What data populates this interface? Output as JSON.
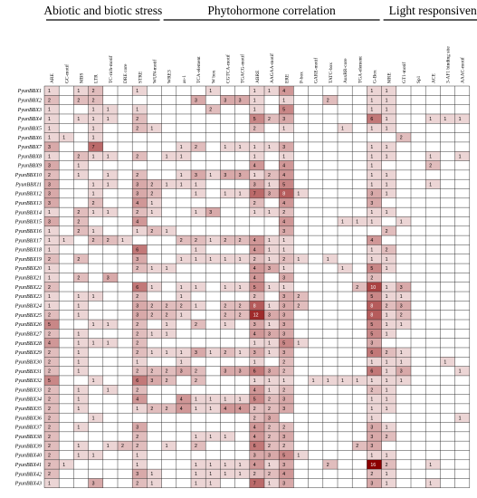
{
  "chart_data": {
    "type": "heatmap",
    "groups": [
      {
        "label": "Abiotic and biotic stress",
        "start": 0,
        "end": 7
      },
      {
        "label": "Phytohormone correlation",
        "start": 8,
        "end": 22
      },
      {
        "label": "Light responsiveness",
        "start": 23,
        "end": 30
      }
    ],
    "columns": [
      "ARE",
      "GC-motif",
      "MBS",
      "LTR",
      "TC-rich-motif",
      "DRE core",
      "STRE",
      "WUN-motif",
      "WRE3",
      "as-1",
      "TCA-element",
      "W box",
      "CGTCA-motif",
      "TGACG-motif",
      "ABRE",
      "AAGAA-motif",
      "ERE",
      "P-box",
      "GARE-motif",
      "TATC-box",
      "AuxRR-core",
      "TGA-element",
      "G-Box",
      "MRE",
      "GT1-motif",
      "Sp1",
      "ACE",
      "3-AF1 binding site",
      "AAAC-motif"
    ],
    "rows": [
      "PyunBBX1",
      "PyunBBX2",
      "PyunBBX3",
      "PyunBBX4",
      "PyunBBX5",
      "PyunBBX6",
      "PyunBBX7",
      "PyunBBX8",
      "PyunBBX9",
      "PyunBBX10",
      "PyunBBX11",
      "PyunBBX12",
      "PyunBBX13",
      "PyunBBX14",
      "PyunBBX15",
      "PyunBBX16",
      "PyunBBX17",
      "PyunBBX18",
      "PyunBBX19",
      "PyunBBX20",
      "PyunBBX21",
      "PyunBBX22",
      "PyunBBX23",
      "PyunBBX24",
      "PyunBBX25",
      "PyunBBX26",
      "PyunBBX27",
      "PyunBBX28",
      "PyunBBX29",
      "PyunBBX30",
      "PyunBBX31",
      "PyunBBX32",
      "PyunBBX33",
      "PyunBBX34",
      "PyunBBX35",
      "PyunBBX36",
      "PyunBBX37",
      "PyunBBX38",
      "PyunBBX39",
      "PyunBBX40",
      "PyunBBX41",
      "PyunBBX42",
      "PyunBBX43"
    ],
    "values": [
      [
        1,
        0,
        1,
        2,
        0,
        0,
        1,
        0,
        0,
        0,
        0,
        1,
        0,
        0,
        1,
        1,
        4,
        0,
        0,
        0,
        0,
        0,
        1,
        1,
        0,
        0,
        0,
        0,
        0
      ],
      [
        2,
        0,
        2,
        2,
        0,
        0,
        0,
        0,
        0,
        0,
        3,
        0,
        3,
        3,
        1,
        0,
        1,
        0,
        0,
        2,
        0,
        0,
        1,
        1,
        0,
        0,
        0,
        0,
        0
      ],
      [
        1,
        0,
        0,
        1,
        1,
        0,
        1,
        0,
        0,
        0,
        0,
        2,
        0,
        0,
        1,
        0,
        5,
        0,
        0,
        0,
        0,
        0,
        1,
        1,
        0,
        0,
        0,
        0,
        0
      ],
      [
        1,
        0,
        1,
        1,
        1,
        0,
        2,
        0,
        0,
        0,
        0,
        0,
        0,
        0,
        5,
        2,
        3,
        0,
        0,
        0,
        0,
        0,
        6,
        1,
        0,
        0,
        1,
        1,
        1
      ],
      [
        1,
        0,
        0,
        1,
        0,
        0,
        2,
        1,
        0,
        0,
        0,
        0,
        0,
        0,
        2,
        0,
        1,
        0,
        0,
        0,
        1,
        0,
        1,
        1,
        0,
        0,
        0,
        0,
        0
      ],
      [
        1,
        1,
        0,
        1,
        0,
        0,
        0,
        0,
        0,
        0,
        0,
        0,
        0,
        0,
        0,
        0,
        0,
        0,
        0,
        0,
        0,
        0,
        0,
        0,
        2,
        0,
        0,
        0,
        0
      ],
      [
        3,
        0,
        0,
        7,
        0,
        0,
        0,
        0,
        0,
        1,
        2,
        0,
        1,
        1,
        1,
        1,
        3,
        0,
        0,
        0,
        0,
        0,
        1,
        1,
        0,
        0,
        0,
        0,
        0
      ],
      [
        1,
        0,
        2,
        1,
        1,
        0,
        2,
        0,
        1,
        1,
        0,
        0,
        0,
        0,
        1,
        0,
        1,
        0,
        0,
        0,
        0,
        0,
        1,
        1,
        0,
        0,
        1,
        0,
        1
      ],
      [
        3,
        0,
        1,
        0,
        0,
        0,
        0,
        0,
        0,
        0,
        0,
        0,
        0,
        0,
        4,
        0,
        4,
        0,
        0,
        0,
        0,
        0,
        1,
        0,
        0,
        0,
        2,
        0,
        0
      ],
      [
        2,
        0,
        1,
        0,
        1,
        0,
        2,
        0,
        0,
        1,
        3,
        1,
        3,
        3,
        1,
        2,
        4,
        0,
        0,
        0,
        0,
        0,
        1,
        1,
        0,
        0,
        0,
        0,
        0
      ],
      [
        3,
        0,
        0,
        1,
        1,
        0,
        3,
        2,
        1,
        1,
        1,
        0,
        0,
        0,
        3,
        1,
        5,
        0,
        0,
        0,
        0,
        0,
        1,
        1,
        0,
        0,
        1,
        0,
        0
      ],
      [
        3,
        0,
        0,
        1,
        0,
        0,
        3,
        2,
        0,
        0,
        1,
        0,
        1,
        1,
        7,
        3,
        8,
        1,
        0,
        0,
        0,
        0,
        3,
        1,
        0,
        0,
        0,
        0,
        0
      ],
      [
        3,
        0,
        0,
        2,
        0,
        0,
        4,
        1,
        0,
        0,
        0,
        0,
        0,
        0,
        2,
        0,
        4,
        0,
        0,
        0,
        0,
        0,
        3,
        0,
        0,
        0,
        0,
        0,
        0
      ],
      [
        1,
        0,
        2,
        1,
        1,
        0,
        2,
        1,
        0,
        0,
        1,
        3,
        0,
        0,
        1,
        1,
        2,
        0,
        0,
        0,
        0,
        0,
        1,
        1,
        0,
        0,
        0,
        0,
        0
      ],
      [
        3,
        0,
        2,
        0,
        0,
        0,
        4,
        0,
        0,
        0,
        0,
        0,
        0,
        0,
        0,
        0,
        4,
        0,
        0,
        0,
        1,
        1,
        1,
        0,
        1,
        0,
        0,
        0,
        0
      ],
      [
        1,
        0,
        2,
        1,
        0,
        0,
        1,
        2,
        1,
        0,
        0,
        0,
        0,
        0,
        0,
        0,
        3,
        0,
        0,
        0,
        0,
        0,
        0,
        2,
        0,
        0,
        0,
        0,
        0
      ],
      [
        1,
        1,
        0,
        2,
        2,
        1,
        0,
        0,
        0,
        2,
        2,
        1,
        2,
        2,
        4,
        1,
        1,
        0,
        0,
        0,
        0,
        0,
        4,
        0,
        0,
        0,
        0,
        0,
        0
      ],
      [
        1,
        0,
        0,
        0,
        0,
        0,
        6,
        0,
        0,
        0,
        1,
        0,
        0,
        0,
        4,
        1,
        1,
        0,
        0,
        0,
        0,
        0,
        1,
        2,
        0,
        0,
        0,
        0,
        0
      ],
      [
        2,
        0,
        2,
        0,
        0,
        0,
        3,
        0,
        0,
        1,
        1,
        1,
        1,
        1,
        2,
        1,
        2,
        1,
        0,
        1,
        0,
        0,
        1,
        1,
        0,
        0,
        0,
        0,
        0
      ],
      [
        1,
        0,
        0,
        0,
        0,
        0,
        2,
        1,
        1,
        0,
        0,
        0,
        0,
        0,
        4,
        3,
        1,
        0,
        0,
        0,
        1,
        0,
        5,
        1,
        0,
        0,
        0,
        0,
        0
      ],
      [
        1,
        0,
        2,
        0,
        3,
        0,
        0,
        0,
        0,
        0,
        0,
        0,
        0,
        0,
        4,
        0,
        3,
        0,
        0,
        0,
        0,
        0,
        2,
        0,
        0,
        0,
        0,
        0,
        0
      ],
      [
        2,
        0,
        0,
        0,
        0,
        0,
        6,
        1,
        0,
        1,
        1,
        0,
        1,
        1,
        5,
        1,
        1,
        0,
        0,
        0,
        0,
        2,
        10,
        1,
        3,
        0,
        0,
        0,
        0
      ],
      [
        1,
        0,
        1,
        1,
        0,
        0,
        2,
        0,
        0,
        1,
        0,
        0,
        0,
        0,
        2,
        0,
        3,
        2,
        0,
        0,
        0,
        0,
        5,
        1,
        1,
        0,
        0,
        0,
        0
      ],
      [
        1,
        0,
        1,
        0,
        0,
        0,
        3,
        2,
        2,
        2,
        1,
        0,
        2,
        2,
        8,
        1,
        3,
        2,
        0,
        0,
        0,
        0,
        8,
        2,
        3,
        0,
        0,
        0,
        0
      ],
      [
        2,
        0,
        1,
        0,
        0,
        0,
        3,
        2,
        2,
        1,
        0,
        0,
        2,
        2,
        12,
        3,
        3,
        0,
        0,
        0,
        0,
        0,
        8,
        1,
        2,
        0,
        0,
        0,
        0
      ],
      [
        5,
        0,
        0,
        1,
        1,
        0,
        2,
        0,
        1,
        0,
        2,
        0,
        1,
        0,
        3,
        1,
        3,
        0,
        0,
        0,
        0,
        0,
        5,
        1,
        1,
        0,
        0,
        0,
        0
      ],
      [
        2,
        0,
        1,
        0,
        0,
        0,
        2,
        1,
        1,
        0,
        0,
        0,
        0,
        0,
        4,
        3,
        3,
        0,
        0,
        0,
        0,
        0,
        5,
        1,
        0,
        0,
        0,
        0,
        0
      ],
      [
        4,
        0,
        1,
        1,
        1,
        0,
        2,
        0,
        0,
        0,
        0,
        0,
        0,
        0,
        1,
        1,
        5,
        1,
        0,
        0,
        0,
        0,
        3,
        0,
        0,
        0,
        0,
        0,
        0
      ],
      [
        2,
        0,
        1,
        0,
        0,
        0,
        2,
        1,
        1,
        1,
        3,
        1,
        2,
        1,
        3,
        1,
        3,
        0,
        0,
        0,
        0,
        0,
        6,
        2,
        1,
        0,
        0,
        0,
        0
      ],
      [
        2,
        0,
        1,
        0,
        0,
        0,
        1,
        0,
        0,
        1,
        0,
        0,
        0,
        0,
        1,
        0,
        2,
        0,
        0,
        0,
        0,
        0,
        1,
        1,
        1,
        0,
        0,
        1,
        0
      ],
      [
        2,
        0,
        1,
        0,
        0,
        0,
        2,
        2,
        2,
        3,
        2,
        0,
        3,
        3,
        6,
        3,
        2,
        0,
        0,
        0,
        0,
        0,
        6,
        1,
        3,
        0,
        0,
        0,
        1
      ],
      [
        5,
        0,
        0,
        1,
        0,
        0,
        6,
        3,
        2,
        0,
        2,
        0,
        0,
        0,
        1,
        1,
        1,
        0,
        1,
        1,
        1,
        1,
        1,
        1,
        1,
        0,
        0,
        0,
        0
      ],
      [
        2,
        0,
        1,
        0,
        1,
        0,
        2,
        0,
        0,
        0,
        0,
        0,
        0,
        0,
        4,
        1,
        2,
        0,
        0,
        0,
        0,
        0,
        2,
        1,
        0,
        0,
        0,
        0,
        0
      ],
      [
        2,
        0,
        1,
        0,
        0,
        0,
        4,
        0,
        0,
        4,
        1,
        1,
        1,
        1,
        5,
        2,
        3,
        0,
        0,
        0,
        0,
        0,
        1,
        1,
        0,
        0,
        0,
        0,
        0
      ],
      [
        2,
        0,
        1,
        0,
        0,
        0,
        1,
        2,
        2,
        4,
        1,
        1,
        4,
        4,
        2,
        2,
        3,
        0,
        0,
        0,
        0,
        0,
        1,
        1,
        0,
        0,
        0,
        0,
        0
      ],
      [
        2,
        0,
        0,
        1,
        0,
        0,
        0,
        0,
        0,
        0,
        0,
        0,
        0,
        0,
        2,
        3,
        0,
        0,
        0,
        0,
        0,
        0,
        1,
        0,
        0,
        0,
        0,
        0,
        1
      ],
      [
        2,
        0,
        1,
        0,
        0,
        0,
        3,
        0,
        0,
        0,
        0,
        0,
        0,
        0,
        4,
        2,
        2,
        0,
        0,
        0,
        0,
        0,
        3,
        1,
        0,
        0,
        0,
        0,
        0
      ],
      [
        2,
        0,
        0,
        0,
        0,
        0,
        2,
        0,
        0,
        0,
        1,
        1,
        1,
        0,
        4,
        2,
        3,
        0,
        0,
        0,
        0,
        0,
        3,
        2,
        0,
        0,
        0,
        0,
        0
      ],
      [
        2,
        0,
        1,
        0,
        1,
        2,
        2,
        0,
        1,
        0,
        2,
        0,
        0,
        0,
        6,
        2,
        2,
        0,
        0,
        0,
        0,
        2,
        3,
        0,
        0,
        0,
        0,
        0,
        0
      ],
      [
        2,
        0,
        1,
        1,
        0,
        0,
        1,
        0,
        0,
        0,
        0,
        0,
        0,
        0,
        3,
        3,
        5,
        1,
        0,
        0,
        0,
        0,
        1,
        1,
        0,
        0,
        0,
        0,
        0
      ],
      [
        2,
        1,
        0,
        0,
        0,
        0,
        1,
        0,
        0,
        0,
        1,
        1,
        1,
        1,
        4,
        1,
        3,
        0,
        0,
        2,
        0,
        0,
        16,
        2,
        0,
        0,
        1,
        0,
        0
      ],
      [
        2,
        0,
        0,
        0,
        0,
        0,
        3,
        1,
        0,
        0,
        1,
        1,
        1,
        1,
        2,
        2,
        4,
        0,
        0,
        0,
        0,
        0,
        2,
        1,
        0,
        0,
        0,
        0,
        0
      ],
      [
        1,
        0,
        0,
        3,
        0,
        0,
        2,
        1,
        0,
        0,
        1,
        1,
        0,
        0,
        7,
        1,
        3,
        0,
        0,
        0,
        0,
        0,
        3,
        1,
        0,
        0,
        1,
        0,
        0
      ]
    ],
    "color_low": "#ffffff",
    "color_high": "#8b0000"
  }
}
